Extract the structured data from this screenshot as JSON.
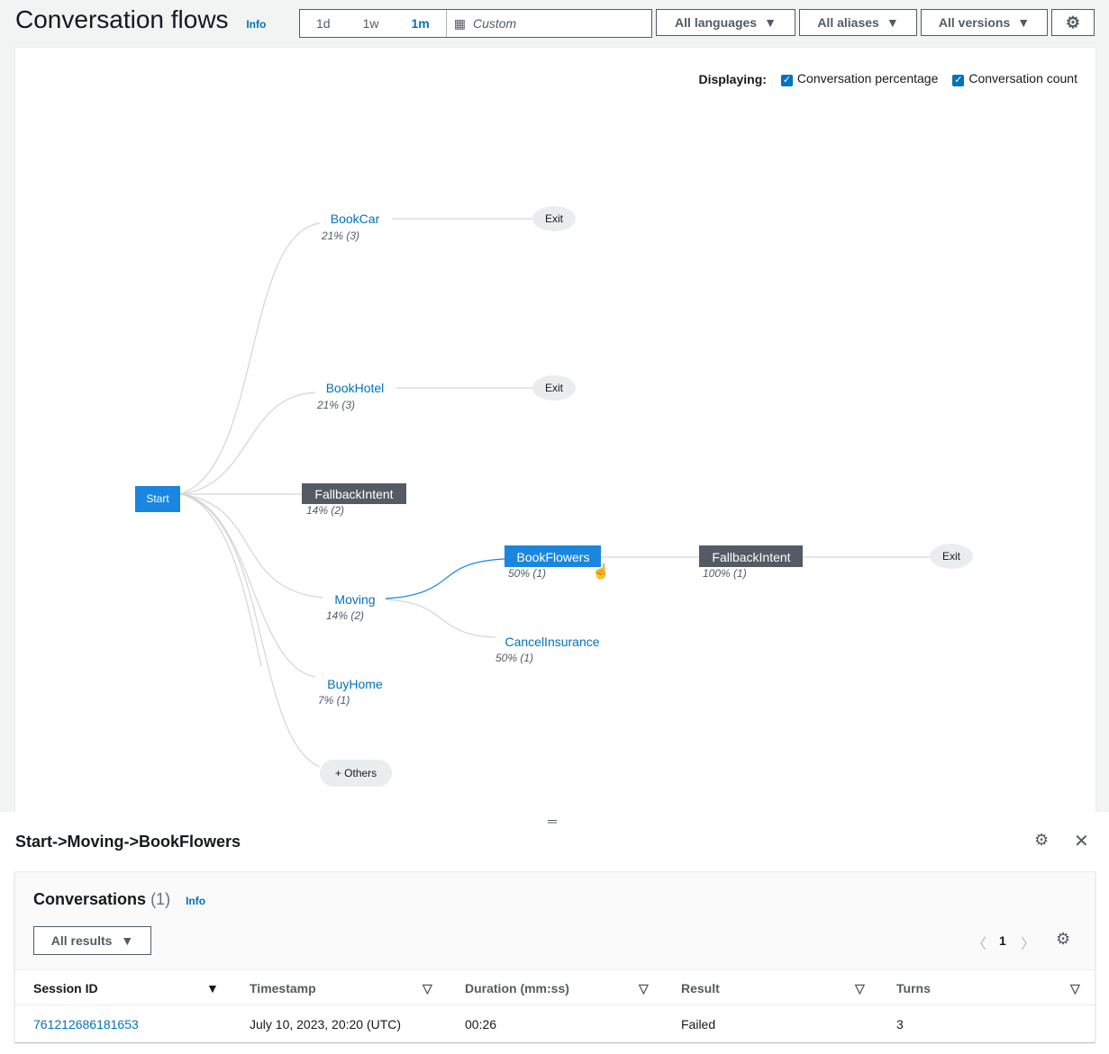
{
  "header": {
    "title": "Conversation flows",
    "info": "Info",
    "ranges": [
      "1d",
      "1w",
      "1m"
    ],
    "active_range": "1m",
    "custom": "Custom",
    "languages": "All languages",
    "aliases": "All aliases",
    "versions": "All versions"
  },
  "displaying": {
    "label": "Displaying:",
    "options": [
      "Conversation percentage",
      "Conversation count"
    ],
    "checked": [
      true,
      true
    ]
  },
  "colors": {
    "accent": "#0073bb",
    "node_blue": "#1a86e0",
    "node_dark": "#545b64",
    "edge": "#d5d5d5"
  },
  "flow": {
    "start": "Start",
    "nodes": [
      {
        "label": "BookCar",
        "stat": "21% (3)"
      },
      {
        "label": "BookHotel",
        "stat": "21% (3)"
      },
      {
        "label": "FallbackIntent",
        "stat": "14% (2)"
      },
      {
        "label": "Moving",
        "stat": "14% (2)"
      },
      {
        "label": "BookFlowers",
        "stat": "50% (1)"
      },
      {
        "label": "FallbackIntent",
        "stat": "100% (1)"
      },
      {
        "label": "CancelInsurance",
        "stat": "50% (1)"
      },
      {
        "label": "BuyHome",
        "stat": "7% (1)"
      }
    ],
    "exit": "Exit",
    "others": "+ Others"
  },
  "detail": {
    "path": "Start->Moving->BookFlowers",
    "section": "Conversations",
    "count": "(1)",
    "info": "Info",
    "filter": "All results",
    "page": "1",
    "columns": [
      "Session ID",
      "Timestamp",
      "Duration (mm:ss)",
      "Result",
      "Turns"
    ],
    "rows": [
      {
        "session": "761212686181653",
        "timestamp": "July 10, 2023, 20:20 (UTC)",
        "duration": "00:26",
        "result": "Failed",
        "turns": "3"
      }
    ]
  }
}
